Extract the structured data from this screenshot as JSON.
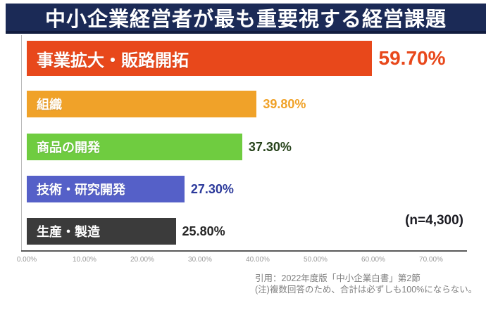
{
  "title": "中小企業経営者が最も重要視する経営課題",
  "chart_data": {
    "type": "bar",
    "orientation": "horizontal",
    "title": "中小企業経営者が最も重要視する経営課題",
    "categories": [
      "事業拡大・販路開拓",
      "組織",
      "商品の開発",
      "技術・研究開発",
      "生産・製造"
    ],
    "values": [
      59.7,
      39.8,
      37.3,
      27.3,
      25.8
    ],
    "value_labels": [
      "59.70%",
      "39.80%",
      "37.30%",
      "27.30%",
      "25.80%"
    ],
    "bar_colors": [
      "#e8481b",
      "#f0a229",
      "#6fcc40",
      "#5560c8",
      "#3b3b3b"
    ],
    "value_colors": [
      "#e8481b",
      "#f0a229",
      "#26421a",
      "#2c3a9b",
      "#262626"
    ],
    "xlabel": "",
    "ylabel": "",
    "xlim": [
      0,
      77
    ],
    "x_ticks": [
      "0.00%",
      "10.00%",
      "20.00%",
      "30.00%",
      "40.00%",
      "50.00%",
      "60.00%",
      "70.00%"
    ],
    "grid": false,
    "legend": false,
    "annotation": "(n=4,300)"
  },
  "footer": {
    "line1": "引用：2022年度版「中小企業白書」第2節",
    "line2": "(注)複数回答のため、合計は必ずしも100%にならない。"
  },
  "colors": {
    "banner_bg": "#1b2a56",
    "banner_text": "#ffffff",
    "x_axis_line": "#595959",
    "y_axis_line": "#b9b9b9",
    "tick_text": "#999999",
    "footer_text": "#7f7f7f",
    "n_label_text": "#1b1b22"
  }
}
